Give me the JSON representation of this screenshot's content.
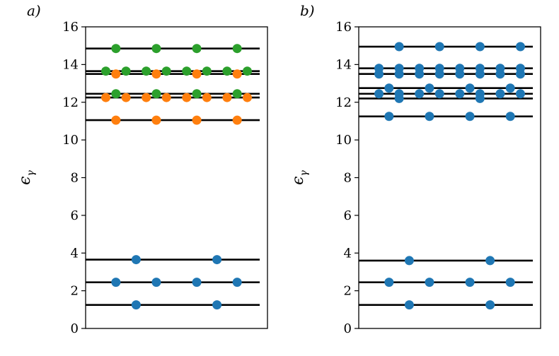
{
  "chart_data": [
    {
      "type": "scatter",
      "panel_label": "a)",
      "ylabel": "ϵ",
      "ylabel_subscript": "γ",
      "ylim": [
        0,
        16
      ],
      "yticks": [
        0,
        2,
        4,
        6,
        8,
        10,
        12,
        14,
        16
      ],
      "grid": false,
      "levels": [
        1.25,
        2.45,
        3.65,
        11.05,
        12.25,
        12.45,
        13.5,
        13.65,
        14.85
      ],
      "series": [
        {
          "color": "#1f77b4",
          "points": [
            {
              "x": 2,
              "y": 1.25
            },
            {
              "x": 6,
              "y": 1.25
            },
            {
              "x": 1,
              "y": 2.45
            },
            {
              "x": 3,
              "y": 2.45
            },
            {
              "x": 5,
              "y": 2.45
            },
            {
              "x": 7,
              "y": 2.45
            },
            {
              "x": 2,
              "y": 3.65
            },
            {
              "x": 6,
              "y": 3.65
            }
          ]
        },
        {
          "color": "#ff7f0e",
          "points": [
            {
              "x": 1,
              "y": 11.05
            },
            {
              "x": 3,
              "y": 11.05
            },
            {
              "x": 5,
              "y": 11.05
            },
            {
              "x": 7,
              "y": 11.05
            },
            {
              "x": 0.5,
              "y": 12.25
            },
            {
              "x": 1.5,
              "y": 12.25
            },
            {
              "x": 2.5,
              "y": 12.25
            },
            {
              "x": 3.5,
              "y": 12.25
            },
            {
              "x": 4.5,
              "y": 12.25
            },
            {
              "x": 5.5,
              "y": 12.25
            },
            {
              "x": 6.5,
              "y": 12.25
            },
            {
              "x": 7.5,
              "y": 12.25
            },
            {
              "x": 1,
              "y": 13.5
            },
            {
              "x": 3,
              "y": 13.5
            },
            {
              "x": 5,
              "y": 13.5
            },
            {
              "x": 7,
              "y": 13.5
            }
          ]
        },
        {
          "color": "#2ca02c",
          "points": [
            {
              "x": 1,
              "y": 12.45
            },
            {
              "x": 3,
              "y": 12.45
            },
            {
              "x": 5,
              "y": 12.45
            },
            {
              "x": 7,
              "y": 12.45
            },
            {
              "x": 0.5,
              "y": 13.65
            },
            {
              "x": 1.5,
              "y": 13.65
            },
            {
              "x": 2.5,
              "y": 13.65
            },
            {
              "x": 3.5,
              "y": 13.65
            },
            {
              "x": 4.5,
              "y": 13.65
            },
            {
              "x": 5.5,
              "y": 13.65
            },
            {
              "x": 6.5,
              "y": 13.65
            },
            {
              "x": 7.5,
              "y": 13.65
            },
            {
              "x": 1,
              "y": 14.85
            },
            {
              "x": 3,
              "y": 14.85
            },
            {
              "x": 5,
              "y": 14.85
            },
            {
              "x": 7,
              "y": 14.85
            }
          ]
        }
      ]
    },
    {
      "type": "scatter",
      "panel_label": "b)",
      "ylabel": "ϵ",
      "ylabel_subscript": "γ",
      "ylim": [
        0,
        16
      ],
      "yticks": [
        0,
        2,
        4,
        6,
        8,
        10,
        12,
        14,
        16
      ],
      "grid": false,
      "levels": [
        1.25,
        2.45,
        3.6,
        11.25,
        12.2,
        12.45,
        12.75,
        13.5,
        13.8,
        14.95
      ],
      "series": [
        {
          "color": "#1f77b4",
          "points": [
            {
              "x": 2,
              "y": 1.25
            },
            {
              "x": 6,
              "y": 1.25
            },
            {
              "x": 1,
              "y": 2.45
            },
            {
              "x": 3,
              "y": 2.45
            },
            {
              "x": 5,
              "y": 2.45
            },
            {
              "x": 7,
              "y": 2.45
            },
            {
              "x": 2,
              "y": 3.6
            },
            {
              "x": 6,
              "y": 3.6
            },
            {
              "x": 1,
              "y": 11.25
            },
            {
              "x": 3,
              "y": 11.25
            },
            {
              "x": 5,
              "y": 11.25
            },
            {
              "x": 7,
              "y": 11.25
            },
            {
              "x": 1.5,
              "y": 12.2
            },
            {
              "x": 5.5,
              "y": 12.2
            },
            {
              "x": 0.5,
              "y": 12.45
            },
            {
              "x": 1.5,
              "y": 12.45
            },
            {
              "x": 2.5,
              "y": 12.45
            },
            {
              "x": 3.5,
              "y": 12.45
            },
            {
              "x": 4.5,
              "y": 12.45
            },
            {
              "x": 5.5,
              "y": 12.45
            },
            {
              "x": 6.5,
              "y": 12.45
            },
            {
              "x": 7.5,
              "y": 12.45
            },
            {
              "x": 1,
              "y": 12.75
            },
            {
              "x": 3,
              "y": 12.75
            },
            {
              "x": 5,
              "y": 12.75
            },
            {
              "x": 7,
              "y": 12.75
            },
            {
              "x": 0.5,
              "y": 13.5
            },
            {
              "x": 1.5,
              "y": 13.5
            },
            {
              "x": 2.5,
              "y": 13.5
            },
            {
              "x": 3.5,
              "y": 13.5
            },
            {
              "x": 4.5,
              "y": 13.5
            },
            {
              "x": 5.5,
              "y": 13.5
            },
            {
              "x": 6.5,
              "y": 13.5
            },
            {
              "x": 7.5,
              "y": 13.5
            },
            {
              "x": 0.5,
              "y": 13.8
            },
            {
              "x": 1.5,
              "y": 13.8
            },
            {
              "x": 2.5,
              "y": 13.8
            },
            {
              "x": 3.5,
              "y": 13.8
            },
            {
              "x": 4.5,
              "y": 13.8
            },
            {
              "x": 5.5,
              "y": 13.8
            },
            {
              "x": 6.5,
              "y": 13.8
            },
            {
              "x": 7.5,
              "y": 13.8
            },
            {
              "x": 1.5,
              "y": 14.95
            },
            {
              "x": 3.5,
              "y": 14.95
            },
            {
              "x": 5.5,
              "y": 14.95
            },
            {
              "x": 7.5,
              "y": 14.95
            }
          ]
        }
      ]
    }
  ]
}
